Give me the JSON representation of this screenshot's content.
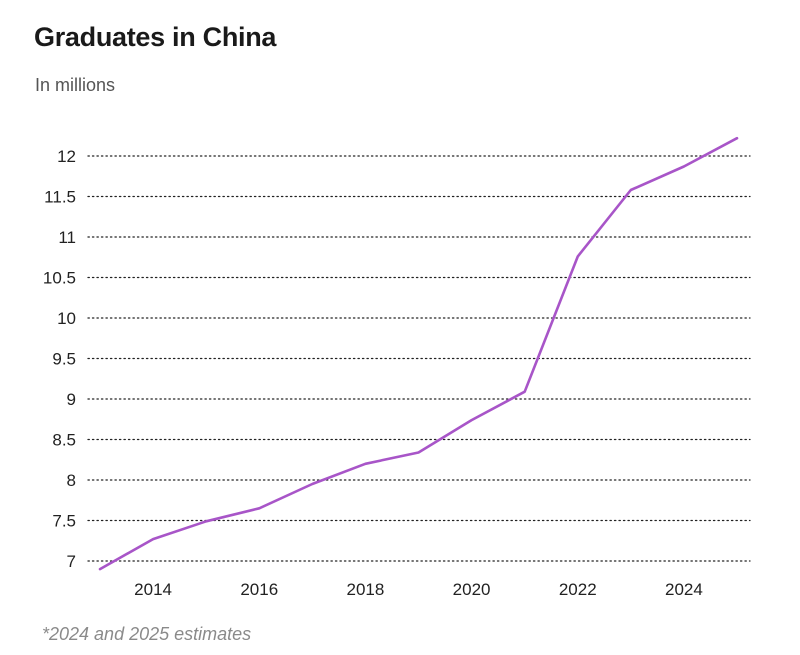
{
  "title": "Graduates in China",
  "subtitle": "In millions",
  "footnote": "*2024 and 2025 estimates",
  "colors": {
    "line": "#a855c8",
    "grid": "#222222",
    "text": "#222222"
  },
  "chart_data": {
    "type": "line",
    "title": "Graduates in China",
    "subtitle": "In millions",
    "xlabel": "",
    "ylabel": "",
    "x": [
      2013,
      2014,
      2015,
      2016,
      2017,
      2018,
      2019,
      2020,
      2021,
      2022,
      2023,
      2024,
      2025
    ],
    "series": [
      {
        "values": [
          6.9,
          7.27,
          7.49,
          7.65,
          7.95,
          8.2,
          8.34,
          8.74,
          9.09,
          10.76,
          11.58,
          11.87,
          12.22
        ]
      }
    ],
    "xticks": [
      2014,
      2016,
      2018,
      2020,
      2022,
      2024
    ],
    "xtick_labels": [
      "2014",
      "2016",
      "2018",
      "2020",
      "2022",
      "2024"
    ],
    "yticks": [
      7,
      7.5,
      8,
      8.5,
      9,
      9.5,
      10,
      10.5,
      11,
      11.5,
      12
    ],
    "ytick_labels": [
      "7",
      "7.5",
      "8",
      "8.5",
      "9",
      "9.5",
      "10",
      "10.5",
      "11",
      "11.5",
      "12"
    ],
    "xlim": [
      2013,
      2025
    ],
    "ylim": [
      7,
      12
    ],
    "grid": "horizontal-dotted",
    "legend": "none"
  }
}
